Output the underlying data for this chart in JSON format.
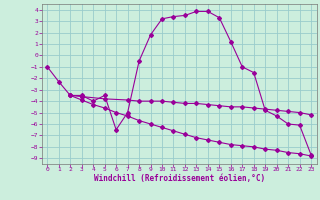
{
  "xlabel": "Windchill (Refroidissement éolien,°C)",
  "bg_color": "#cceedd",
  "grid_color": "#99cccc",
  "line_color": "#990099",
  "xlim": [
    -0.5,
    23.5
  ],
  "ylim": [
    -9.5,
    4.5
  ],
  "xticks": [
    0,
    1,
    2,
    3,
    4,
    5,
    6,
    7,
    8,
    9,
    10,
    11,
    12,
    13,
    14,
    15,
    16,
    17,
    18,
    19,
    20,
    21,
    22,
    23
  ],
  "yticks": [
    4,
    3,
    2,
    1,
    0,
    -1,
    -2,
    -3,
    -4,
    -5,
    -6,
    -7,
    -8,
    -9
  ],
  "line1_x": [
    0,
    1,
    2,
    3,
    4,
    5,
    6,
    7,
    8,
    9,
    10,
    11,
    12,
    13,
    14,
    15,
    16,
    17,
    18,
    19,
    20,
    21,
    22,
    23
  ],
  "line1_y": [
    -1.0,
    -2.3,
    -3.5,
    -3.5,
    -4.0,
    -3.5,
    -6.5,
    -5.0,
    -0.5,
    1.8,
    3.2,
    3.4,
    3.5,
    3.85,
    3.85,
    3.3,
    1.2,
    -1.0,
    -1.5,
    -4.8,
    -5.3,
    -6.0,
    -6.1,
    -8.7
  ],
  "line2_x": [
    2,
    3,
    5,
    7,
    8,
    9,
    10,
    11,
    12,
    13,
    14,
    15,
    16,
    17,
    18,
    19,
    20,
    21,
    22,
    23
  ],
  "line2_y": [
    -3.5,
    -3.6,
    -3.8,
    -3.9,
    -4.0,
    -4.0,
    -4.0,
    -4.1,
    -4.2,
    -4.2,
    -4.3,
    -4.4,
    -4.5,
    -4.5,
    -4.6,
    -4.7,
    -4.8,
    -4.9,
    -5.0,
    -5.2
  ],
  "line3_x": [
    2,
    3,
    4,
    5,
    6,
    7,
    8,
    9,
    10,
    11,
    12,
    13,
    14,
    15,
    16,
    17,
    18,
    19,
    20,
    21,
    22,
    23
  ],
  "line3_y": [
    -3.5,
    -3.9,
    -4.3,
    -4.6,
    -5.0,
    -5.3,
    -5.7,
    -6.0,
    -6.3,
    -6.6,
    -6.9,
    -7.2,
    -7.4,
    -7.6,
    -7.8,
    -7.9,
    -8.0,
    -8.2,
    -8.3,
    -8.5,
    -8.6,
    -8.8
  ]
}
